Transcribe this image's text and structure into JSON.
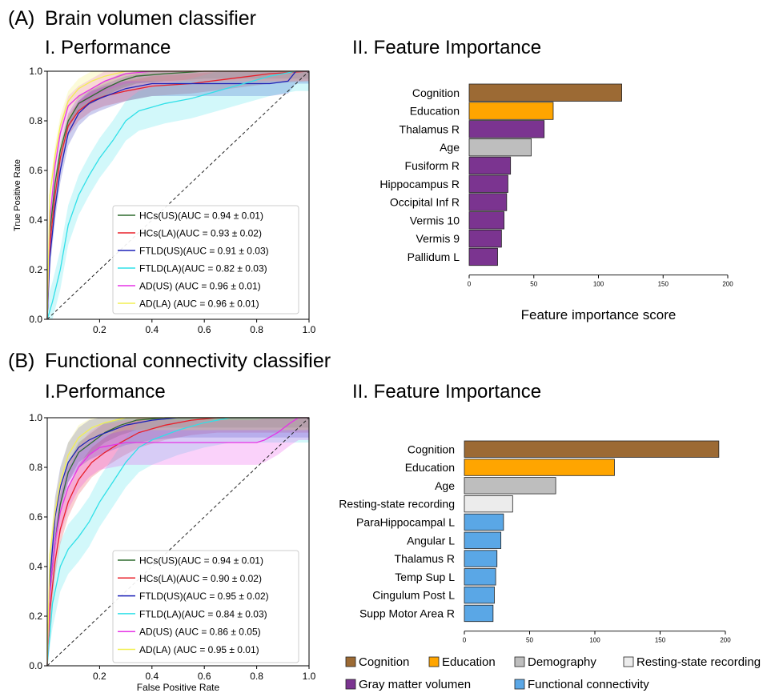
{
  "panelA": {
    "letter": "(A)",
    "title": "Brain volumen classifier",
    "perf_title": "I. Performance",
    "imp_title": "II. Feature Importance"
  },
  "panelB": {
    "letter": "(B)",
    "title": "Functional connectivity classifier",
    "perf_title": "I.Performance",
    "imp_title": "II. Feature Importance"
  },
  "category_legend": [
    {
      "label": "Cognition",
      "color": "#9c6a34"
    },
    {
      "label": "Education",
      "color": "#ffa500"
    },
    {
      "label": "Demography",
      "color": "#bebebe"
    },
    {
      "label": "Resting-state recording",
      "color": "#ececec"
    },
    {
      "label": "Gray matter volumen",
      "color": "#7b3490"
    },
    {
      "label": "Functional connectivity",
      "color": "#5aa7e6"
    }
  ],
  "chart_data": [
    {
      "id": "A-roc",
      "type": "line",
      "xlabel": "",
      "ylabel": "True Positive Rate",
      "xlim": [
        0,
        1
      ],
      "ylim": [
        0,
        1
      ],
      "xticks": [
        "0.2",
        "0.4",
        "0.6",
        "0.8",
        "1.0"
      ],
      "yticks": [
        "0.0",
        "0.2",
        "0.4",
        "0.6",
        "0.8",
        "1.0"
      ],
      "legend_position": "lower-right",
      "series": [
        {
          "name": "HCs(US)(AUC = 0.94 ± 0.01)",
          "color": "#2e6b2e",
          "x": [
            0,
            0.01,
            0.03,
            0.05,
            0.08,
            0.12,
            0.17,
            0.22,
            0.28,
            0.34,
            0.45,
            0.6,
            0.8,
            1.0
          ],
          "y": [
            0,
            0.35,
            0.55,
            0.68,
            0.8,
            0.87,
            0.9,
            0.93,
            0.96,
            0.98,
            0.99,
            1.0,
            1.0,
            1.0
          ],
          "band": 0.03
        },
        {
          "name": "HCs(LA)(AUC = 0.93 ± 0.02)",
          "color": "#e8202a",
          "x": [
            0,
            0.01,
            0.03,
            0.05,
            0.08,
            0.12,
            0.17,
            0.22,
            0.3,
            0.4,
            0.55,
            0.7,
            0.85,
            1.0
          ],
          "y": [
            0,
            0.3,
            0.5,
            0.65,
            0.78,
            0.84,
            0.88,
            0.9,
            0.92,
            0.94,
            0.95,
            0.97,
            0.99,
            1.0
          ],
          "band": 0.04
        },
        {
          "name": "FTLD(US)(AUC = 0.91 ± 0.03)",
          "color": "#1d22b8",
          "x": [
            0,
            0.01,
            0.03,
            0.05,
            0.08,
            0.12,
            0.16,
            0.2,
            0.25,
            0.3,
            0.4,
            0.6,
            0.75,
            0.85,
            0.92,
            0.95,
            1.0
          ],
          "y": [
            0,
            0.25,
            0.45,
            0.6,
            0.75,
            0.83,
            0.87,
            0.89,
            0.91,
            0.93,
            0.95,
            0.95,
            0.95,
            0.95,
            0.96,
            1.0,
            1.0
          ],
          "band": 0.05
        },
        {
          "name": "FTLD(LA)(AUC = 0.82 ± 0.03)",
          "color": "#30e0e8",
          "x": [
            0,
            0.02,
            0.05,
            0.08,
            0.12,
            0.16,
            0.2,
            0.25,
            0.3,
            0.35,
            0.45,
            0.55,
            0.65,
            0.75,
            0.85,
            0.95,
            1.0
          ],
          "y": [
            0,
            0.07,
            0.2,
            0.38,
            0.5,
            0.58,
            0.65,
            0.72,
            0.8,
            0.84,
            0.87,
            0.89,
            0.92,
            0.95,
            0.98,
            1.0,
            1.0
          ],
          "band": 0.08
        },
        {
          "name": "AD(US)  (AUC = 0.96 ± 0.01)",
          "color": "#e633e6",
          "x": [
            0,
            0.01,
            0.03,
            0.05,
            0.08,
            0.12,
            0.17,
            0.22,
            0.3,
            0.4,
            0.55,
            1.0
          ],
          "y": [
            0,
            0.4,
            0.62,
            0.75,
            0.86,
            0.9,
            0.93,
            0.96,
            0.99,
            1.0,
            1.0,
            1.0
          ],
          "band": 0.04
        },
        {
          "name": "AD(LA)  (AUC = 0.96 ± 0.01)",
          "color": "#f2ef52",
          "x": [
            0,
            0.01,
            0.03,
            0.05,
            0.08,
            0.12,
            0.17,
            0.22,
            0.3,
            0.4,
            1.0
          ],
          "y": [
            0,
            0.5,
            0.66,
            0.78,
            0.88,
            0.93,
            0.96,
            0.98,
            1.0,
            1.0,
            1.0
          ],
          "band": 0.04
        }
      ]
    },
    {
      "id": "A-importance",
      "type": "bar",
      "orientation": "horizontal",
      "xlabel": "Feature importance score",
      "xlim": [
        0,
        200
      ],
      "xticks": [
        "0",
        "50",
        "100",
        "150",
        "200"
      ],
      "categories": [
        "Cognition",
        "Education",
        "Thalamus R",
        "Age",
        "Fusiform R",
        "Hippocampus R",
        "Occipital Inf R",
        "Vermis 10",
        "Vermis 9",
        "Pallidum L"
      ],
      "values": [
        118,
        65,
        58,
        48,
        32,
        30,
        29,
        27,
        25,
        22
      ],
      "colors": [
        "#9c6a34",
        "#ffa500",
        "#7b3490",
        "#bebebe",
        "#7b3490",
        "#7b3490",
        "#7b3490",
        "#7b3490",
        "#7b3490",
        "#7b3490"
      ]
    },
    {
      "id": "B-roc",
      "type": "line",
      "xlabel": "False Positive Rate",
      "ylabel": "",
      "xlim": [
        0,
        1
      ],
      "ylim": [
        0,
        1
      ],
      "xticks": [
        "0.2",
        "0.4",
        "0.6",
        "0.8",
        "1.0"
      ],
      "yticks": [
        "0.0",
        "0.2",
        "0.4",
        "0.6",
        "0.8",
        "1.0"
      ],
      "legend_position": "lower-right",
      "series": [
        {
          "name": "HCs(US)(AUC = 0.94 ± 0.01)",
          "color": "#2e6b2e",
          "x": [
            0,
            0.01,
            0.03,
            0.05,
            0.08,
            0.12,
            0.17,
            0.22,
            0.28,
            0.34,
            0.45,
            0.6,
            1.0
          ],
          "y": [
            0,
            0.3,
            0.5,
            0.65,
            0.78,
            0.86,
            0.9,
            0.94,
            0.97,
            0.99,
            1.0,
            1.0,
            1.0
          ],
          "band": 0.04
        },
        {
          "name": "HCs(LA)(AUC = 0.90 ± 0.02)",
          "color": "#e8202a",
          "x": [
            0,
            0.01,
            0.03,
            0.05,
            0.08,
            0.12,
            0.17,
            0.22,
            0.28,
            0.35,
            0.45,
            0.55,
            0.65,
            1.0
          ],
          "y": [
            0,
            0.22,
            0.42,
            0.55,
            0.66,
            0.75,
            0.82,
            0.86,
            0.9,
            0.94,
            0.97,
            0.99,
            1.0,
            1.0
          ],
          "band": 0.06
        },
        {
          "name": "FTLD(US)(AUC = 0.95 ± 0.02)",
          "color": "#1d22b8",
          "x": [
            0,
            0.01,
            0.03,
            0.05,
            0.08,
            0.12,
            0.16,
            0.2,
            0.25,
            0.3,
            0.4,
            0.5,
            1.0
          ],
          "y": [
            0,
            0.35,
            0.6,
            0.72,
            0.82,
            0.88,
            0.91,
            0.93,
            0.95,
            0.97,
            0.99,
            1.0,
            1.0
          ],
          "band": 0.08
        },
        {
          "name": "FTLD(LA)(AUC = 0.84 ± 0.03)",
          "color": "#30e0e8",
          "x": [
            0,
            0.02,
            0.05,
            0.08,
            0.12,
            0.16,
            0.2,
            0.25,
            0.3,
            0.35,
            0.4,
            0.5,
            0.6,
            0.7,
            1.0
          ],
          "y": [
            0,
            0.25,
            0.4,
            0.47,
            0.52,
            0.58,
            0.66,
            0.74,
            0.82,
            0.88,
            0.91,
            0.95,
            0.98,
            1.0,
            1.0
          ],
          "band": 0.1
        },
        {
          "name": "AD(US)  (AUC = 0.86 ± 0.05)",
          "color": "#e633e6",
          "x": [
            0,
            0.01,
            0.03,
            0.05,
            0.08,
            0.12,
            0.16,
            0.2,
            0.25,
            0.3,
            0.4,
            0.6,
            0.8,
            0.83,
            0.88,
            0.93,
            0.96,
            1.0
          ],
          "y": [
            0,
            0.3,
            0.5,
            0.62,
            0.72,
            0.8,
            0.85,
            0.88,
            0.89,
            0.9,
            0.9,
            0.9,
            0.9,
            0.91,
            0.94,
            0.98,
            1.0,
            1.0
          ],
          "band": 0.09
        },
        {
          "name": "AD(LA)  (AUC = 0.95 ± 0.01)",
          "color": "#f2ef52",
          "x": [
            0,
            0.01,
            0.03,
            0.05,
            0.08,
            0.12,
            0.17,
            0.22,
            0.3,
            0.4,
            1.0
          ],
          "y": [
            0,
            0.45,
            0.62,
            0.74,
            0.85,
            0.92,
            0.96,
            0.98,
            1.0,
            1.0,
            1.0
          ],
          "band": 0.05
        }
      ]
    },
    {
      "id": "B-importance",
      "type": "bar",
      "orientation": "horizontal",
      "xlabel": "",
      "xlim": [
        0,
        200
      ],
      "xticks": [
        "0",
        "50",
        "100",
        "150",
        "200"
      ],
      "categories": [
        "Cognition",
        "Education",
        "Age",
        "Resting-state recording",
        "ParaHippocampal L",
        "Angular L",
        "Thalamus R",
        "Temp Sup L",
        "Cingulum Post L",
        "Supp Motor Area R"
      ],
      "values": [
        195,
        115,
        70,
        37,
        30,
        28,
        25,
        24,
        23,
        22
      ],
      "colors": [
        "#9c6a34",
        "#ffa500",
        "#bebebe",
        "#ececec",
        "#5aa7e6",
        "#5aa7e6",
        "#5aa7e6",
        "#5aa7e6",
        "#5aa7e6",
        "#5aa7e6"
      ]
    }
  ]
}
